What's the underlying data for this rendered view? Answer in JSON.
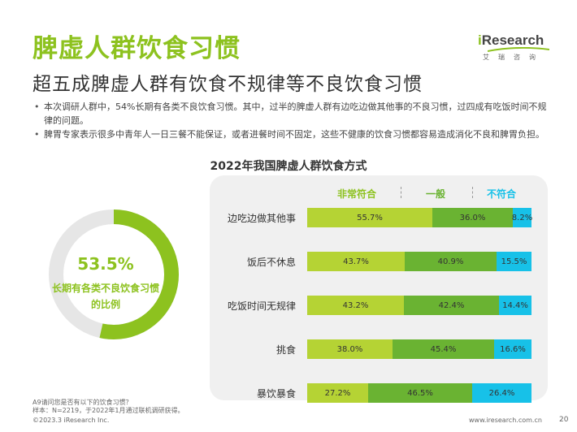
{
  "header": {
    "title": "脾虚人群饮食习惯",
    "subtitle": "超五成脾虚人群有饮食不规律等不良饮食习惯"
  },
  "logo": {
    "word_i": "i",
    "word_rest": "Research",
    "sub": "艾瑞咨询"
  },
  "bullets": [
    "本次调研人群中，54%长期有各类不良饮食习惯。其中，过半的脾虚人群有边吃边做其他事的不良习惯，过四成有吃饭时间不规律的问题。",
    "脾胃专家表示很多中青年人一日三餐不能保证，或者进餐时间不固定，这些不健康的饮食习惯都容易造成消化不良和脾胃负担。"
  ],
  "colors": {
    "green_dark": "#8dc21f",
    "green_mid": "#6ab332",
    "green_light": "#b5d334",
    "cyan": "#17c1e8",
    "grey": "#f0f0f0"
  },
  "chart_data": [
    {
      "type": "pie",
      "value": 53.5,
      "value_label": "53.5%",
      "label": "长期有各类不良饮食习惯的比例"
    },
    {
      "type": "bar",
      "stacked": true,
      "orientation": "horizontal",
      "title": "2022年我国脾虚人群饮食方式",
      "categories": [
        "边吃边做其他事",
        "饭后不休息",
        "吃饭时间无规律",
        "挑食",
        "暴饮暴食"
      ],
      "series": [
        {
          "name": "非常符合",
          "values": [
            55.7,
            43.7,
            43.2,
            38.0,
            27.2
          ],
          "labels": [
            "55.7%",
            "43.7%",
            "43.2%",
            "38.0%",
            "27.2%"
          ]
        },
        {
          "name": "一般",
          "values": [
            36.0,
            40.9,
            42.4,
            45.4,
            46.5
          ],
          "labels": [
            "36.0%",
            "40.9%",
            "42.4%",
            "45.4%",
            "46.5%"
          ]
        },
        {
          "name": "不符合",
          "values": [
            8.2,
            15.5,
            14.4,
            16.6,
            26.4
          ],
          "labels": [
            "8.2%",
            "15.5%",
            "14.4%",
            "16.6%",
            "26.4%"
          ]
        }
      ],
      "legend": "top"
    }
  ],
  "footnote": {
    "line1": "A9请问您是否有以下的饮食习惯？",
    "line2": "样本：N=2219，于2022年1月通过联机调研获得。"
  },
  "footer": {
    "copyright": "©2023.3 iResearch Inc.",
    "site": "www.iresearch.com.cn",
    "page": "20"
  }
}
